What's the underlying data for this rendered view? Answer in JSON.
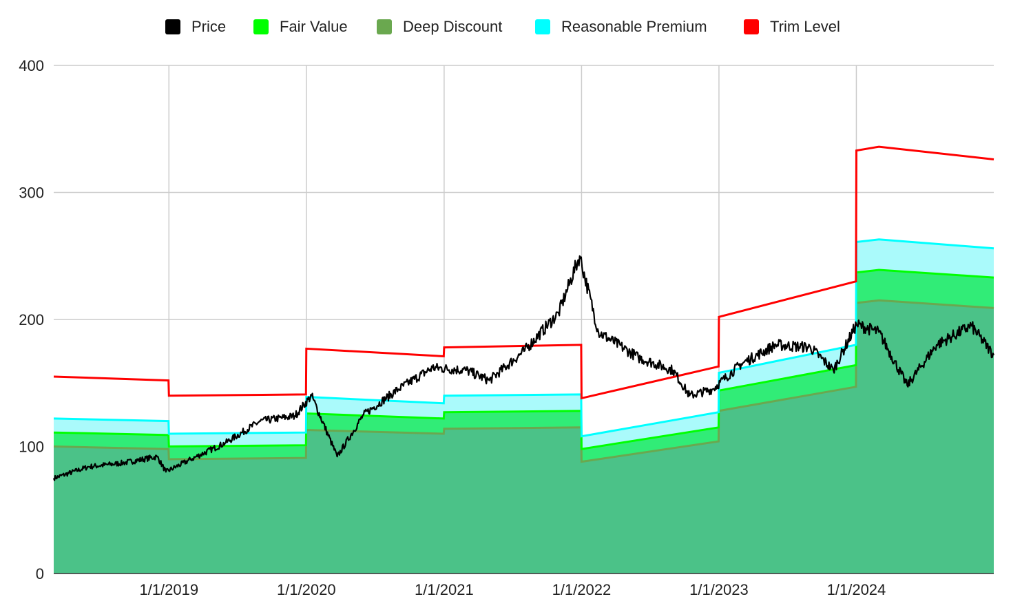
{
  "chart_data": {
    "type": "area",
    "x_axis": {
      "type": "date",
      "range": [
        "2018-03-01",
        "2024-12-31"
      ],
      "tick_labels": [
        "1/1/2019",
        "1/1/2020",
        "1/1/2021",
        "1/1/2022",
        "1/1/2023",
        "1/1/2024"
      ],
      "tick_dates": [
        "2019-01-01",
        "2020-01-01",
        "2021-01-01",
        "2022-01-01",
        "2023-01-01",
        "2024-01-01"
      ]
    },
    "y_axis": {
      "range": [
        0,
        400
      ],
      "tick_labels": [
        "0",
        "100",
        "200",
        "300",
        "400"
      ],
      "tick_values": [
        0,
        100,
        200,
        300,
        400
      ]
    },
    "grid": true,
    "legend_position": "top",
    "legend": [
      {
        "name": "Price",
        "color": "#000000"
      },
      {
        "name": "Fair Value",
        "color": "#00ff00"
      },
      {
        "name": "Deep Discount",
        "color": "#6aa84f"
      },
      {
        "name": "Reasonable Premium",
        "color": "#00ffff"
      },
      {
        "name": "Trim Level",
        "color": "#ff0000"
      }
    ],
    "series": [
      {
        "name": "Price",
        "kind": "line",
        "color": "#000000",
        "points": [
          [
            "2018-03-01",
            75
          ],
          [
            "2018-06-01",
            84
          ],
          [
            "2018-09-01",
            87
          ],
          [
            "2018-12-01",
            92
          ],
          [
            "2018-12-24",
            80
          ],
          [
            "2019-03-01",
            90
          ],
          [
            "2019-06-01",
            103
          ],
          [
            "2019-09-01",
            120
          ],
          [
            "2019-12-01",
            124
          ],
          [
            "2020-01-15",
            140
          ],
          [
            "2020-03-23",
            92
          ],
          [
            "2020-06-01",
            125
          ],
          [
            "2020-09-01",
            145
          ],
          [
            "2020-12-01",
            162
          ],
          [
            "2021-03-01",
            160
          ],
          [
            "2021-05-01",
            152
          ],
          [
            "2021-08-01",
            175
          ],
          [
            "2021-11-01",
            205
          ],
          [
            "2021-12-27",
            250
          ],
          [
            "2022-02-15",
            190
          ],
          [
            "2022-06-01",
            170
          ],
          [
            "2022-09-01",
            160
          ],
          [
            "2022-10-15",
            140
          ],
          [
            "2022-12-15",
            145
          ],
          [
            "2023-03-01",
            165
          ],
          [
            "2023-06-01",
            180
          ],
          [
            "2023-09-01",
            178
          ],
          [
            "2023-11-01",
            160
          ],
          [
            "2024-01-01",
            196
          ],
          [
            "2024-03-01",
            190
          ],
          [
            "2024-05-15",
            148
          ],
          [
            "2024-08-01",
            180
          ],
          [
            "2024-11-01",
            195
          ],
          [
            "2024-12-31",
            172
          ]
        ]
      },
      {
        "name": "Deep Discount",
        "kind": "area",
        "color": "#6aa84f",
        "points": [
          [
            "2018-03-01",
            100
          ],
          [
            "2018-12-31",
            98
          ],
          [
            "2019-01-01",
            90
          ],
          [
            "2019-12-31",
            91
          ],
          [
            "2020-01-01",
            113
          ],
          [
            "2020-12-31",
            110
          ],
          [
            "2021-01-01",
            114
          ],
          [
            "2021-12-31",
            115
          ],
          [
            "2022-01-01",
            88
          ],
          [
            "2022-12-31",
            104
          ],
          [
            "2023-01-01",
            128
          ],
          [
            "2023-12-31",
            147
          ],
          [
            "2024-01-01",
            213
          ],
          [
            "2024-03-01",
            215
          ],
          [
            "2024-12-31",
            209
          ]
        ]
      },
      {
        "name": "Fair Value",
        "kind": "area",
        "color": "#00ff00",
        "points": [
          [
            "2018-03-01",
            111
          ],
          [
            "2018-12-31",
            109
          ],
          [
            "2019-01-01",
            100
          ],
          [
            "2019-12-31",
            101
          ],
          [
            "2020-01-01",
            126
          ],
          [
            "2020-12-31",
            122
          ],
          [
            "2021-01-01",
            127
          ],
          [
            "2021-12-31",
            128
          ],
          [
            "2022-01-01",
            98
          ],
          [
            "2022-12-31",
            115
          ],
          [
            "2023-01-01",
            144
          ],
          [
            "2023-12-31",
            164
          ],
          [
            "2024-01-01",
            237
          ],
          [
            "2024-03-01",
            239
          ],
          [
            "2024-12-31",
            233
          ]
        ]
      },
      {
        "name": "Reasonable Premium",
        "kind": "area",
        "color": "#00ffff",
        "points": [
          [
            "2018-03-01",
            122
          ],
          [
            "2018-12-31",
            120
          ],
          [
            "2019-01-01",
            110
          ],
          [
            "2019-12-31",
            111
          ],
          [
            "2020-01-01",
            139
          ],
          [
            "2020-12-31",
            134
          ],
          [
            "2021-01-01",
            140
          ],
          [
            "2021-12-31",
            141
          ],
          [
            "2022-01-01",
            108
          ],
          [
            "2022-12-31",
            127
          ],
          [
            "2023-01-01",
            158
          ],
          [
            "2023-12-31",
            180
          ],
          [
            "2024-01-01",
            261
          ],
          [
            "2024-03-01",
            263
          ],
          [
            "2024-12-31",
            256
          ]
        ]
      },
      {
        "name": "Trim Level",
        "kind": "line",
        "color": "#ff0000",
        "points": [
          [
            "2018-03-01",
            155
          ],
          [
            "2018-12-31",
            152
          ],
          [
            "2019-01-01",
            140
          ],
          [
            "2019-12-31",
            141
          ],
          [
            "2020-01-01",
            177
          ],
          [
            "2020-12-31",
            171
          ],
          [
            "2021-01-01",
            178
          ],
          [
            "2021-12-31",
            180
          ],
          [
            "2022-01-01",
            138
          ],
          [
            "2022-12-31",
            163
          ],
          [
            "2023-01-01",
            202
          ],
          [
            "2023-12-31",
            230
          ],
          [
            "2024-01-01",
            333
          ],
          [
            "2024-03-01",
            336
          ],
          [
            "2024-12-31",
            326
          ]
        ]
      }
    ]
  }
}
